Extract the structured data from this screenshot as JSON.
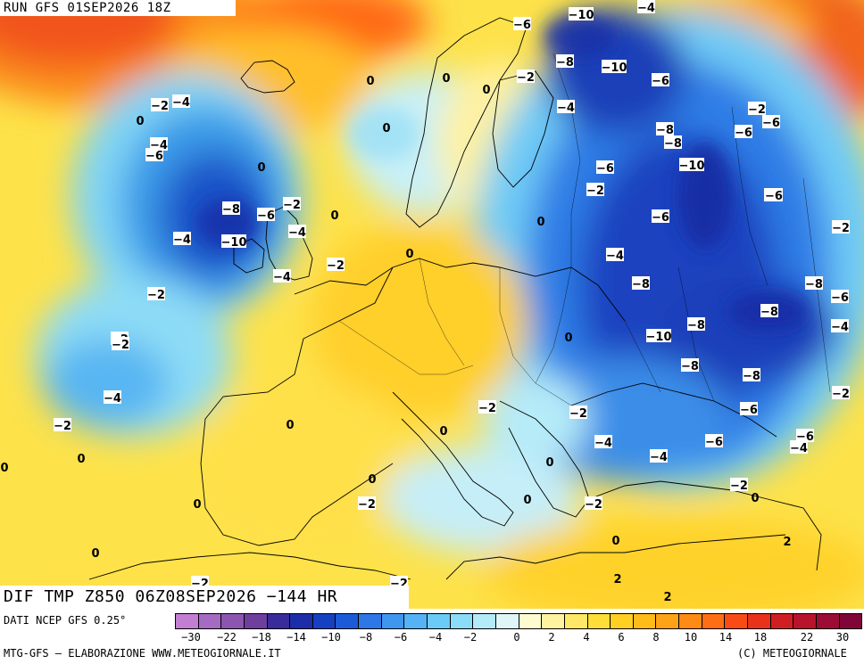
{
  "header": {
    "run_title": "RUN GFS 01SEP2026 18Z"
  },
  "field": {
    "title": "DIF TMP Z850 06Z08SEP2026 −144 HR"
  },
  "footer": {
    "data_source": "DATI NCEP GFS 0.25°",
    "credit": "MTG-GFS – ELABORAZIONE WWW.METEOGIORNALE.IT",
    "copyright": "(C) METEOGIORNALE"
  },
  "scale": {
    "tick_labels": [
      "−30",
      "−22",
      "−18",
      "−14",
      "−10",
      "−8",
      "−6",
      "−4",
      "−2",
      "0",
      "2",
      "4",
      "6",
      "8",
      "10",
      "14",
      "18",
      "22",
      "30"
    ],
    "colors": [
      "#c27fd1",
      "#a56ac2",
      "#8b55b0",
      "#6f3f9e",
      "#3a2b9a",
      "#1d2ca8",
      "#1640c2",
      "#1c5ad8",
      "#2d78e6",
      "#3f96ef",
      "#55b2f4",
      "#6ccaf6",
      "#8bdcf6",
      "#b4ebf8",
      "#dff6f8",
      "#fffbd0",
      "#fff3a0",
      "#ffe866",
      "#ffde3a",
      "#ffcf22",
      "#ffbb18",
      "#ffa316",
      "#ff8a14",
      "#ff6e14",
      "#f94c14",
      "#e8321a",
      "#d01f22",
      "#b8142c",
      "#9d0c34",
      "#80063a"
    ]
  },
  "map_labels": [
    {
      "t": "−10"
    },
    {
      "t": "−4"
    },
    {
      "t": "−6"
    },
    {
      "t": "−8"
    },
    {
      "t": "−10"
    },
    {
      "t": "−2"
    },
    {
      "t": "−6"
    },
    {
      "t": "0"
    },
    {
      "t": "0"
    },
    {
      "t": "0"
    },
    {
      "t": "−4"
    },
    {
      "t": "−2"
    },
    {
      "t": "−4"
    },
    {
      "t": "−8"
    },
    {
      "t": "−6"
    },
    {
      "t": "−8"
    },
    {
      "t": "−6"
    },
    {
      "t": "−2"
    },
    {
      "t": "−4"
    },
    {
      "t": "0"
    },
    {
      "t": "−6"
    },
    {
      "t": "0"
    },
    {
      "t": "−8"
    },
    {
      "t": "−6"
    },
    {
      "t": "0"
    },
    {
      "t": "−2"
    },
    {
      "t": "−6"
    },
    {
      "t": "−4"
    },
    {
      "t": "0"
    },
    {
      "t": "−10"
    },
    {
      "t": "−2"
    },
    {
      "t": "−6"
    },
    {
      "t": "−8"
    },
    {
      "t": "−6"
    },
    {
      "t": "0"
    },
    {
      "t": "−8"
    },
    {
      "t": "−4"
    },
    {
      "t": "−2"
    },
    {
      "t": "−10"
    },
    {
      "t": "−6"
    },
    {
      "t": "−4"
    },
    {
      "t": "−8"
    },
    {
      "t": "−2"
    },
    {
      "t": "−4"
    },
    {
      "t": "−8"
    },
    {
      "t": "0"
    },
    {
      "t": "−2"
    },
    {
      "t": "−10"
    },
    {
      "t": "−8"
    },
    {
      "t": "−8"
    },
    {
      "t": "−6"
    },
    {
      "t": "−4"
    },
    {
      "t": "−6"
    },
    {
      "t": "−4"
    },
    {
      "t": "−6"
    },
    {
      "t": "−2"
    },
    {
      "t": "−4"
    },
    {
      "t": "−2"
    },
    {
      "t": "−4"
    },
    {
      "t": "−2"
    },
    {
      "t": "−6"
    },
    {
      "t": "−2"
    },
    {
      "t": "0"
    },
    {
      "t": "0"
    },
    {
      "t": "0"
    },
    {
      "t": "−2"
    },
    {
      "t": "−2"
    },
    {
      "t": "0"
    },
    {
      "t": "0"
    },
    {
      "t": "−2"
    },
    {
      "t": "0"
    },
    {
      "t": "0"
    },
    {
      "t": "0"
    },
    {
      "t": "−2"
    },
    {
      "t": "0"
    },
    {
      "t": "0"
    },
    {
      "t": "−2"
    },
    {
      "t": "−2"
    },
    {
      "t": "0"
    },
    {
      "t": "2"
    },
    {
      "t": "2"
    },
    {
      "t": "2"
    },
    {
      "t": "−4"
    },
    {
      "t": "0"
    },
    {
      "t": "−2"
    }
  ]
}
